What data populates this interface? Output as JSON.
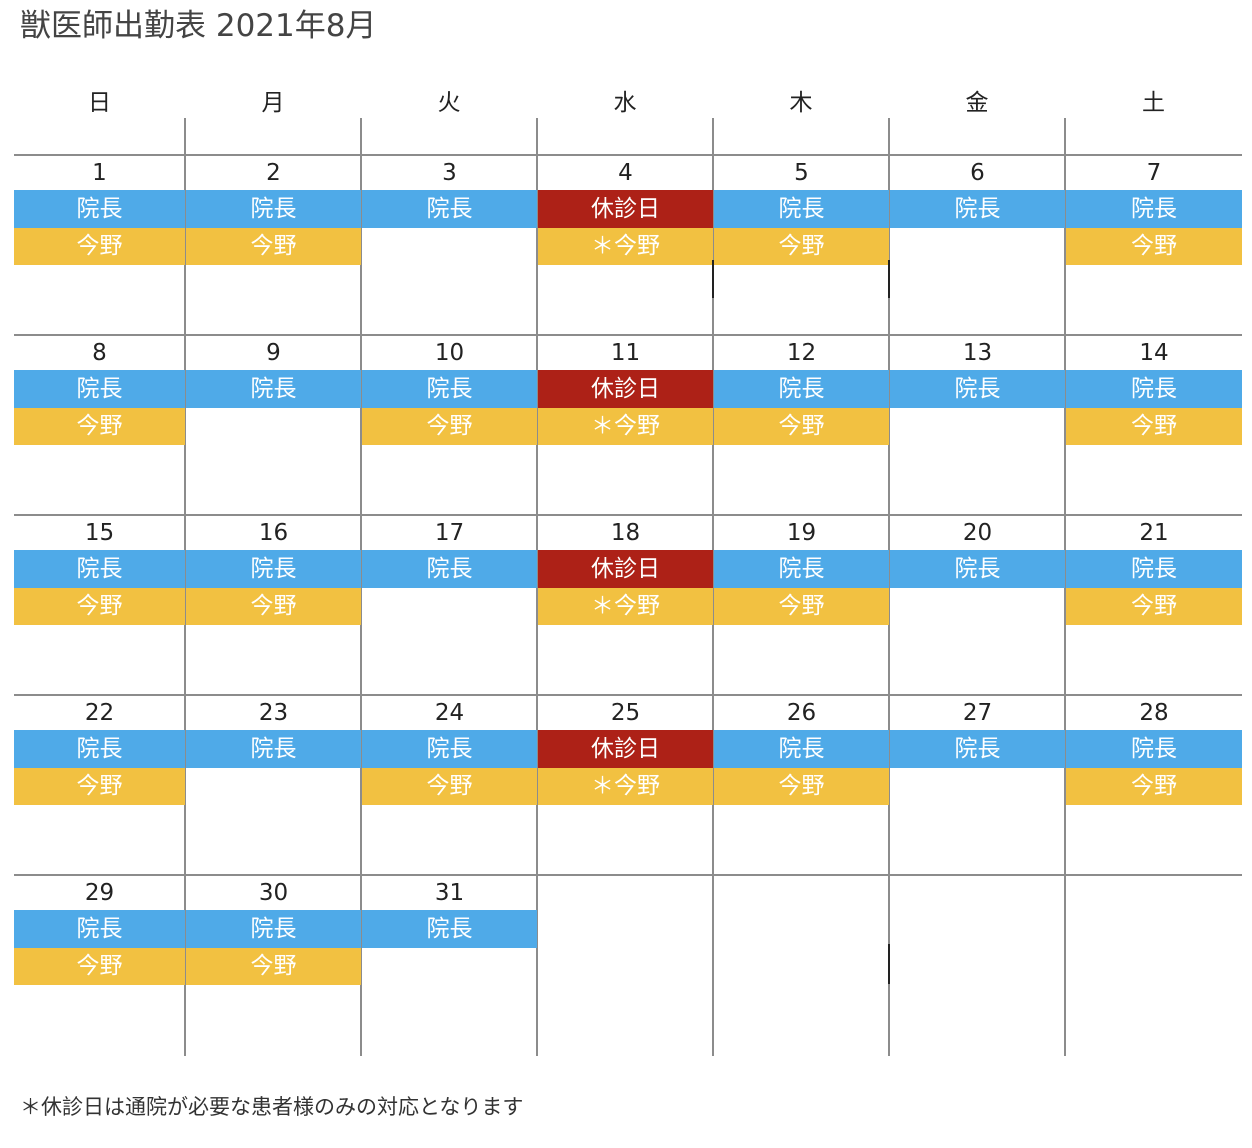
{
  "title": "獣医師出勤表 2021年8月",
  "footnote": "＊休診日は通院が必要な患者様のみの対応となります",
  "colors": {
    "director": "#4faae8",
    "imano": "#f2c141",
    "closed": "#ad2117",
    "grid": "#8c8c8c"
  },
  "weekdays": [
    "日",
    "月",
    "火",
    "水",
    "木",
    "金",
    "土"
  ],
  "weeks": [
    [
      {
        "day": "1",
        "shifts": [
          {
            "label": "院長",
            "type": "director"
          },
          {
            "label": "今野",
            "type": "imano"
          }
        ]
      },
      {
        "day": "2",
        "shifts": [
          {
            "label": "院長",
            "type": "director"
          },
          {
            "label": "今野",
            "type": "imano"
          }
        ]
      },
      {
        "day": "3",
        "shifts": [
          {
            "label": "院長",
            "type": "director"
          }
        ]
      },
      {
        "day": "4",
        "shifts": [
          {
            "label": "休診日",
            "type": "closed"
          },
          {
            "label": "＊今野",
            "type": "imano"
          }
        ]
      },
      {
        "day": "5",
        "shifts": [
          {
            "label": "院長",
            "type": "director"
          },
          {
            "label": "今野",
            "type": "imano"
          }
        ]
      },
      {
        "day": "6",
        "shifts": [
          {
            "label": "院長",
            "type": "director"
          }
        ]
      },
      {
        "day": "7",
        "shifts": [
          {
            "label": "院長",
            "type": "director"
          },
          {
            "label": "今野",
            "type": "imano"
          }
        ]
      }
    ],
    [
      {
        "day": "8",
        "shifts": [
          {
            "label": "院長",
            "type": "director"
          },
          {
            "label": "今野",
            "type": "imano"
          }
        ]
      },
      {
        "day": "9",
        "shifts": [
          {
            "label": "院長",
            "type": "director"
          }
        ]
      },
      {
        "day": "10",
        "shifts": [
          {
            "label": "院長",
            "type": "director"
          },
          {
            "label": "今野",
            "type": "imano"
          }
        ]
      },
      {
        "day": "11",
        "shifts": [
          {
            "label": "休診日",
            "type": "closed"
          },
          {
            "label": "＊今野",
            "type": "imano"
          }
        ]
      },
      {
        "day": "12",
        "shifts": [
          {
            "label": "院長",
            "type": "director"
          },
          {
            "label": "今野",
            "type": "imano"
          }
        ]
      },
      {
        "day": "13",
        "shifts": [
          {
            "label": "院長",
            "type": "director"
          }
        ]
      },
      {
        "day": "14",
        "shifts": [
          {
            "label": "院長",
            "type": "director"
          },
          {
            "label": "今野",
            "type": "imano"
          }
        ]
      }
    ],
    [
      {
        "day": "15",
        "shifts": [
          {
            "label": "院長",
            "type": "director"
          },
          {
            "label": "今野",
            "type": "imano"
          }
        ]
      },
      {
        "day": "16",
        "shifts": [
          {
            "label": "院長",
            "type": "director"
          },
          {
            "label": "今野",
            "type": "imano"
          }
        ]
      },
      {
        "day": "17",
        "shifts": [
          {
            "label": "院長",
            "type": "director"
          }
        ]
      },
      {
        "day": "18",
        "shifts": [
          {
            "label": "休診日",
            "type": "closed"
          },
          {
            "label": "＊今野",
            "type": "imano"
          }
        ]
      },
      {
        "day": "19",
        "shifts": [
          {
            "label": "院長",
            "type": "director"
          },
          {
            "label": "今野",
            "type": "imano"
          }
        ]
      },
      {
        "day": "20",
        "shifts": [
          {
            "label": "院長",
            "type": "director"
          }
        ]
      },
      {
        "day": "21",
        "shifts": [
          {
            "label": "院長",
            "type": "director"
          },
          {
            "label": "今野",
            "type": "imano"
          }
        ]
      }
    ],
    [
      {
        "day": "22",
        "shifts": [
          {
            "label": "院長",
            "type": "director"
          },
          {
            "label": "今野",
            "type": "imano"
          }
        ]
      },
      {
        "day": "23",
        "shifts": [
          {
            "label": "院長",
            "type": "director"
          }
        ]
      },
      {
        "day": "24",
        "shifts": [
          {
            "label": "院長",
            "type": "director"
          },
          {
            "label": "今野",
            "type": "imano"
          }
        ]
      },
      {
        "day": "25",
        "shifts": [
          {
            "label": "休診日",
            "type": "closed"
          },
          {
            "label": "＊今野",
            "type": "imano"
          }
        ]
      },
      {
        "day": "26",
        "shifts": [
          {
            "label": "院長",
            "type": "director"
          },
          {
            "label": "今野",
            "type": "imano"
          }
        ]
      },
      {
        "day": "27",
        "shifts": [
          {
            "label": "院長",
            "type": "director"
          }
        ]
      },
      {
        "day": "28",
        "shifts": [
          {
            "label": "院長",
            "type": "director"
          },
          {
            "label": "今野",
            "type": "imano"
          }
        ]
      }
    ],
    [
      {
        "day": "29",
        "shifts": [
          {
            "label": "院長",
            "type": "director"
          },
          {
            "label": "今野",
            "type": "imano"
          }
        ]
      },
      {
        "day": "30",
        "shifts": [
          {
            "label": "院長",
            "type": "director"
          },
          {
            "label": "今野",
            "type": "imano"
          }
        ]
      },
      {
        "day": "31",
        "shifts": [
          {
            "label": "院長",
            "type": "director"
          }
        ]
      },
      {
        "day": "",
        "shifts": []
      },
      {
        "day": "",
        "shifts": []
      },
      {
        "day": "",
        "shifts": []
      },
      {
        "day": "",
        "shifts": []
      }
    ]
  ]
}
